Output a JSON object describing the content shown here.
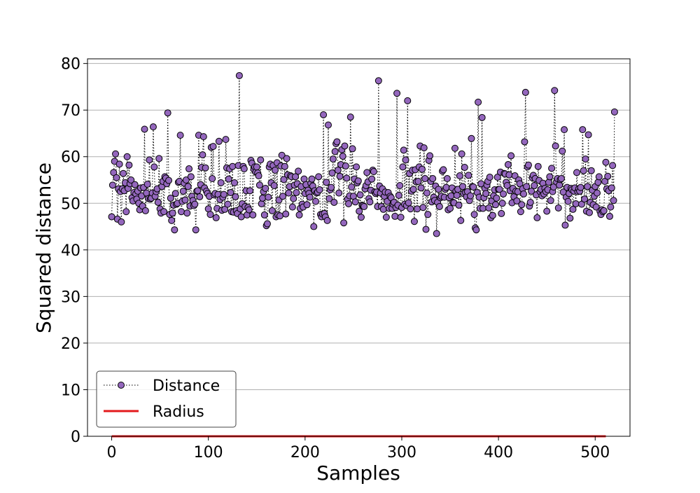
{
  "chart_data": {
    "type": "line",
    "title": "",
    "xlabel": "Samples",
    "ylabel": "Squared distance",
    "xlim": [
      -25,
      536
    ],
    "ylim": [
      0,
      81
    ],
    "grid": "y",
    "legend": {
      "position": "bottom-left",
      "entries": [
        "Distance",
        "Radius"
      ]
    },
    "xticks": [
      0,
      100,
      200,
      300,
      400,
      500
    ],
    "xtick_labels": [
      "0",
      "100",
      "200",
      "300",
      "400",
      "500"
    ],
    "yticks": [
      0,
      10,
      20,
      30,
      40,
      50,
      60,
      70,
      80
    ],
    "ytick_labels": [
      "0",
      "10",
      "20",
      "30",
      "40",
      "50",
      "60",
      "70",
      "80"
    ],
    "series": [
      {
        "name": "Distance",
        "style": "dotted line with circle markers",
        "marker_color": "#9467bd",
        "line_color": "#000000",
        "x_start": 0,
        "x_step": 1,
        "values": [
          47.1,
          53.9,
          56.6,
          59.0,
          60.6,
          55.5,
          46.6,
          53.1,
          58.4,
          52.5,
          46.0,
          53.1,
          56.4,
          52.7,
          54.4,
          48.2,
          60.0,
          53.2,
          58.2,
          54.2,
          55.0,
          51.2,
          50.5,
          52.3,
          54.0,
          52.0,
          50.9,
          52.6,
          50.0,
          48.6,
          53.3,
          51.6,
          49.4,
          53.4,
          65.9,
          48.4,
          52.2,
          54.1,
          51.0,
          59.3,
          50.9,
          51.1,
          52.2,
          66.4,
          57.8,
          51.5,
          52.5,
          53.1,
          50.2,
          59.6,
          48.8,
          47.9,
          53.6,
          54.7,
          48.2,
          55.7,
          55.4,
          54.2,
          69.4,
          54.9,
          47.6,
          51.1,
          46.3,
          47.9,
          49.6,
          44.3,
          52.1,
          49.8,
          50.0,
          54.5,
          54.7,
          64.6,
          48.2,
          50.4,
          52.6,
          54.3,
          50.7,
          55.0,
          47.9,
          53.6,
          57.4,
          49.4,
          55.7,
          51.5,
          50.6,
          49.5,
          49.8,
          44.3,
          52.6,
          52.7,
          64.6,
          51.4,
          54.0,
          57.7,
          60.4,
          64.3,
          53.3,
          57.6,
          52.6,
          52.1,
          48.8,
          51.5,
          47.6,
          62.0,
          55.3,
          62.2,
          51.8,
          52.1,
          46.9,
          48.9,
          51.9,
          63.3,
          50.8,
          54.4,
          48.5,
          51.3,
          51.9,
          48.7,
          63.7,
          57.6,
          49.8,
          55.2,
          57.4,
          52.3,
          48.2,
          57.9,
          48.1,
          54.4,
          51.4,
          48.4,
          47.8,
          58.1,
          77.4,
          48.8,
          47.1,
          49.9,
          57.9,
          57.4,
          49.3,
          52.7,
          47.5,
          49.1,
          48.6,
          52.7,
          59.2,
          58.6,
          47.5,
          57.3,
          57.8,
          56.7,
          57.8,
          56.5,
          55.9,
          53.9,
          59.3,
          49.9,
          51.1,
          52.5,
          47.5,
          53.2,
          45.2,
          45.6,
          51.3,
          57.8,
          58.4,
          54.4,
          48.4,
          58.1,
          53.8,
          57.1,
          47.1,
          58.7,
          47.5,
          50.7,
          47.3,
          58.0,
          60.3,
          51.5,
          55.1,
          57.9,
          47.7,
          59.6,
          56.1,
          52.2,
          53.6,
          55.9,
          55.7,
          49.2,
          51.0,
          53.9,
          55.7,
          52.3,
          54.2,
          56.9,
          47.5,
          48.9,
          53.6,
          49.8,
          49.2,
          55.2,
          52.1,
          54.0,
          49.7,
          52.8,
          52.1,
          51.3,
          54.3,
          55.2,
          53.7,
          45.0,
          52.7,
          50.4,
          52.2,
          52.4,
          55.7,
          52.9,
          47.6,
          47.1,
          47.7,
          69.0,
          47.8,
          47.1,
          54.5,
          46.3,
          66.8,
          51.0,
          52.9,
          53.4,
          56.5,
          59.5,
          50.2,
          61.1,
          62.8,
          63.2,
          57.1,
          52.2,
          55.8,
          58.3,
          61.5,
          60.1,
          45.8,
          62.3,
          58.0,
          55.4,
          50.9,
          49.9,
          51.6,
          68.5,
          53.5,
          61.7,
          51.5,
          55.2,
          50.3,
          57.8,
          54.4,
          54.8,
          48.3,
          51.8,
          47.0,
          49.6,
          49.5,
          49.3,
          53.1,
          53.8,
          56.6,
          54.6,
          51.0,
          50.3,
          52.8,
          55.2,
          57.1,
          56.8,
          52.4,
          52.1,
          52.4,
          49.3,
          76.3,
          53.7,
          52.2,
          49.3,
          53.1,
          48.7,
          51.5,
          52.4,
          47.0,
          50.4,
          52.3,
          48.9,
          51.5,
          51.2,
          48.9,
          49.8,
          50.2,
          47.2,
          49.1,
          73.6,
          49.6,
          51.7,
          53.8,
          47.0,
          49.1,
          57.8,
          61.4,
          49.8,
          59.3,
          49.5,
          72.0,
          50.1,
          56.4,
          48.8,
          52.6,
          57.1,
          53.0,
          46.1,
          57.2,
          54.6,
          48.8,
          54.7,
          57.8,
          62.3,
          53.3,
          57.3,
          49.1,
          61.9,
          55.3,
          44.4,
          52.2,
          47.6,
          59.2,
          60.2,
          54.7,
          50.3,
          55.3,
          51.3,
          50.6,
          53.7,
          43.5,
          50.2,
          53.0,
          49.3,
          51.2,
          51.5,
          56.9,
          57.2,
          51.3,
          53.0,
          53.4,
          55.3,
          48.6,
          51.2,
          48.9,
          51.6,
          53.3,
          50.2,
          50.1,
          61.8,
          52.6,
          51.7,
          53.0,
          49.6,
          55.9,
          46.3,
          60.6,
          53.6,
          52.1,
          57.7,
          52.3,
          51.4,
          52.5,
          56.0,
          50.6,
          51.6,
          63.9,
          53.6,
          53.5,
          47.6,
          44.7,
          44.3,
          52.3,
          71.7,
          51.3,
          48.9,
          54.2,
          68.4,
          48.9,
          51.2,
          53.2,
          52.1,
          53.9,
          54.7,
          49.0,
          55.6,
          46.9,
          50.5,
          47.4,
          51.6,
          52.9,
          49.7,
          51.1,
          55.6,
          53.0,
          53.0,
          56.7,
          47.8,
          50.0,
          52.0,
          56.4,
          56.3,
          54.5,
          53.8,
          58.3,
          56.1,
          52.7,
          60.2,
          50.1,
          53.2,
          51.4,
          55.9,
          52.6,
          50.5,
          52.5,
          55.0,
          54.2,
          48.2,
          49.7,
          53.1,
          52.0,
          63.2,
          73.8,
          53.6,
          57.8,
          58.2,
          49.4,
          50.2,
          52.6,
          55.5,
          56.0,
          53.8,
          55.3,
          51.8,
          46.9,
          57.9,
          54.9,
          52.5,
          53.0,
          51.6,
          54.3,
          52.0,
          53.2,
          52.5,
          48.3,
          52.9,
          54.5,
          55.7,
          50.6,
          57.5,
          52.5,
          53.5,
          74.2,
          62.3,
          54.6,
          55.3,
          49.0,
          53.9,
          55.1,
          55.3,
          61.2,
          52.4,
          65.8,
          45.3,
          51.3,
          53.4,
          50.4,
          52.1,
          46.8,
          53.2,
          52.9,
          48.7,
          52.6,
          53.3,
          49.9,
          56.6,
          52.5,
          53.1,
          52.6,
          53.4,
          49.8,
          65.8,
          57.0,
          50.9,
          59.5,
          48.3,
          53.6,
          64.7,
          48.0,
          50.2,
          57.0,
          52.8,
          49.7,
          51.5,
          53.6,
          49.2,
          52.2,
          54.5,
          55.7,
          48.3,
          47.6,
          48.6,
          48.2,
          48.4,
          54.7,
          58.8,
          53.1,
          55.8,
          52.7,
          47.2,
          49.2,
          53.3,
          58.1,
          50.6,
          69.6
        ]
      },
      {
        "name": "Radius",
        "style": "solid line",
        "line_color": "#e31a1c",
        "x": [
          0,
          511
        ],
        "values": [
          0,
          0
        ]
      }
    ]
  }
}
